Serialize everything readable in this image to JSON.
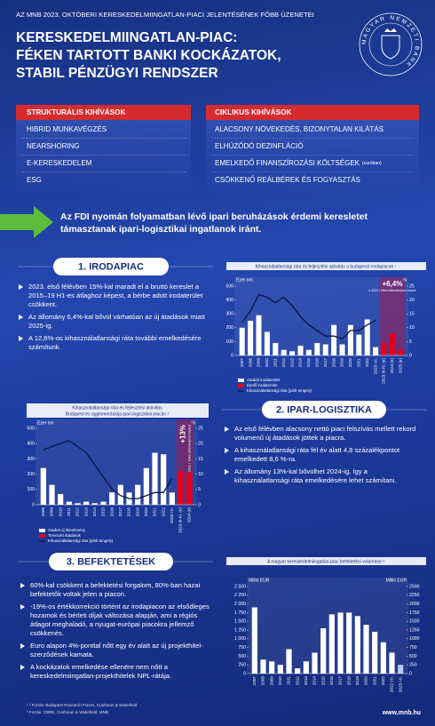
{
  "header": {
    "kicker": "AZ MNB 2023. OKTÓBERI KERESKEDELMIINGATLAN-PIACI JELENTÉSÉNEK FŐBB ÜZENETEI",
    "title": [
      "KERESKEDELMIINGATLAN-PIAC:",
      "FÉKEN TARTOTT BANKI KOCKÁZATOK,",
      "STABIL PÉNZÜGYI RENDSZER"
    ],
    "logo": "MAGYAR NEMZETI BANK"
  },
  "structural": {
    "title": "STRUKTURÁLIS KIHÍVÁSOK",
    "items": [
      "HIBRID MUNKAVÉGZÉS",
      "NEARSHORING",
      "E-KERESKEDELEM",
      "ESG"
    ]
  },
  "cyclical": {
    "title": "CIKLIKUS KIHÍVÁSOK",
    "items": [
      "ALACSONY NÖVEKEDÉS, BIZONYTALAN KILÁTÁS",
      "ELHÚZÓDÓ DEZINFLÁCIÓ",
      {
        "text": "EMELKEDŐ FINANSZÍROZÁSI KÖLTSÉGEK",
        "note": "(euróban)"
      },
      "CSÖKKENŐ REÁLBÉREK ÉS FOGYASZTÁS"
    ]
  },
  "highlight": "Az FDI nyomán folyamatban lévő ipari beruházások érdemi keresletet támasztanak ipari-logisztikai ingatlanok iránt.",
  "sections": [
    {
      "title": "1. IRODAPIAC",
      "bullets": [
        "2023. első félévben 15%-kal maradt el a bruttó kereslet a 2015–19 H1-es átlaghoz képest, a bérbe adott irodaterület csökkent.",
        "Az állomány 6,4%-kal bővül várhatóan az új átadások miatt 2025-ig.",
        "A 12,6%-os kihasználatlansági ráta további emelkedésére számítunk."
      ]
    },
    {
      "title": "2. IPAR-LOGISZTIKA",
      "bullets": [
        "Az első félévben alacsony nettó piaci felszívás mellett rekord volumenű új átadások jöttek a piacra.",
        "A kihasználatlansági ráta fél év alatt 4,8 százalékpontot emelkedett 8,6 %-ra.",
        "Az állomány 13%-kal bővülhet 2024-ig, így a kihasználatlansági ráta emelkedésére lehet számítani."
      ]
    },
    {
      "title": "3. BEFEKTETÉSEK",
      "bullets": [
        "60%-kal csökkent a befektetési forgalom, 80%-ban hazai befektetők voltak jelen a piacon.",
        "-19%-os értékkorrekció történt az irodapiacon az elsődleges hozamok és bérleti díjak változása alapján, ami a régiós átlagot meghaladó, a nyugat-európai piacokra jellemző csökkenés.",
        "Euro alapon 4%-ponttal nőtt egy év alatt az új projekthitel-szerződések kamata.",
        "A kockázatok emelkedése ellenére nem nőtt a kereskedelmiingatlan-projekthitelek NPL-rátája."
      ]
    }
  ],
  "chart_data": [
    {
      "type": "bar-line",
      "title": "Kihasználatlansági ráta és feljesztési aktivitás a budapesti irodapiacon ¹",
      "y_unit": "Ezer nm",
      "y2_unit": "%",
      "annotation": "+6,4%",
      "annotation_note": "a 2023 I. félévi állományhoz képest",
      "categories": [
        "2007",
        "2008",
        "2009",
        "2010",
        "2011",
        "2012",
        "2013",
        "2014",
        "2015",
        "2016",
        "2017",
        "2018",
        "2019",
        "2020",
        "2021",
        "2022",
        "2023 I-II.",
        "2023 III-IV. (e)",
        "2024 (e)",
        "2025 (e)"
      ],
      "series": [
        {
          "name": "Átadott irodaterület",
          "color": "#ffffff",
          "values": [
            200,
            250,
            290,
            170,
            90,
            40,
            30,
            70,
            40,
            90,
            80,
            220,
            80,
            220,
            150,
            260,
            60,
            null,
            null,
            null
          ]
        },
        {
          "name": "Épülő irodaterület",
          "color": "#e3001b",
          "values": [
            null,
            null,
            null,
            null,
            null,
            null,
            null,
            null,
            null,
            null,
            null,
            null,
            null,
            null,
            null,
            null,
            null,
            90,
            160,
            40
          ]
        },
        {
          "name": "Kihasználatlansági ráta (jobb tengely)",
          "color": "#0b1440",
          "axis": "y2",
          "values": [
            12,
            16,
            22,
            21,
            19,
            21,
            18,
            14,
            11,
            9,
            7,
            7,
            6,
            9,
            9,
            11,
            12.6,
            null,
            null,
            null
          ]
        }
      ],
      "ylim": [
        0,
        500
      ],
      "yticks": [
        0,
        100,
        200,
        300,
        400,
        500
      ],
      "y2lim": [
        0,
        25
      ],
      "y2ticks": [
        0,
        5,
        10,
        15,
        20,
        25
      ]
    },
    {
      "type": "bar-line",
      "title": "Kihasználatlansági ráta és fejlesztési aktivitás",
      "subtitle": "Budapest és agglomerációja ipari-logisztikai piacán ²",
      "y_unit": "Ezer nm",
      "y2_unit": "%",
      "annotation": "+13%",
      "annotation_note": "a 2023 I. félévi állományhoz képest",
      "categories": [
        "2008",
        "2009",
        "2010",
        "2011",
        "2012",
        "2013",
        "2014",
        "2015",
        "2016",
        "2017",
        "2018",
        "2019",
        "2020",
        "2021",
        "2022",
        "2023 I-II.",
        "2023 III-IV. (e)",
        "2024 (e)"
      ],
      "series": [
        {
          "name": "Átadott új létesítmény",
          "color": "#ffffff",
          "values": [
            240,
            130,
            70,
            20,
            10,
            20,
            10,
            20,
            80,
            130,
            80,
            130,
            240,
            340,
            330,
            80,
            null,
            null
          ]
        },
        {
          "name": "Tervezett átadások",
          "color": "#e3001b",
          "values": [
            null,
            null,
            null,
            null,
            null,
            null,
            null,
            null,
            null,
            null,
            null,
            null,
            null,
            null,
            null,
            null,
            220,
            210
          ]
        },
        {
          "name": "Kihasználatlansági ráta (jobb tengely)",
          "color": "#0b1440",
          "axis": "y2",
          "values": [
            18,
            19,
            20,
            21,
            19,
            17,
            13,
            9,
            5,
            3,
            2,
            2,
            3,
            4,
            4,
            8.6,
            null,
            null
          ]
        }
      ],
      "ylim": [
        0,
        500
      ],
      "yticks": [
        0,
        100,
        200,
        300,
        400,
        500
      ],
      "y2lim": [
        0,
        25
      ],
      "y2ticks": [
        0,
        5,
        10,
        15,
        20,
        25
      ]
    },
    {
      "type": "bar",
      "title": "A magyar kereskedelmiingatlan-piac befektetési volumene ³",
      "y_unit": "Millió EUR",
      "y2_unit": "Millió EUR",
      "categories": [
        "2007",
        "2008",
        "2009",
        "2010",
        "2011",
        "2012",
        "2013",
        "2014",
        "2015",
        "2016",
        "2017",
        "2018",
        "2019",
        "2020",
        "2021",
        "2022",
        "2022 I-II.",
        "2023 I-II."
      ],
      "series": [
        {
          "color": "#ffffff",
          "colors": [
            "#ffffff",
            "#ffffff",
            "#ffffff",
            "#ffffff",
            "#ffffff",
            "#ffffff",
            "#ffffff",
            "#ffffff",
            "#ffffff",
            "#ffffff",
            "#ffffff",
            "#ffffff",
            "#ffffff",
            "#ffffff",
            "#ffffff",
            "#ffffff",
            "#ffffff",
            "#b9c9f2"
          ],
          "values": [
            1900,
            400,
            350,
            250,
            700,
            150,
            350,
            600,
            1300,
            1700,
            1750,
            1750,
            1650,
            1400,
            1200,
            900,
            600,
            250
          ]
        }
      ],
      "ylim": [
        0,
        2500
      ],
      "yticks": [
        0,
        250,
        500,
        750,
        {
          "value": 1000,
          "label": "1 000"
        },
        {
          "value": 1250,
          "label": "1 250"
        },
        {
          "value": 1500,
          "label": "1 500"
        },
        {
          "value": 1750,
          "label": "1 750"
        },
        {
          "value": 2000,
          "label": "2 000"
        },
        {
          "value": 2250,
          "label": "2 250"
        },
        {
          "value": 2500,
          "label": "2 500"
        }
      ],
      "y2lim": [
        0,
        2500
      ],
      "y2ticks": [
        0,
        250,
        500,
        750,
        1000,
        1250,
        1500,
        1750,
        2000,
        2250,
        2500
      ]
    }
  ],
  "footer": {
    "sources": [
      "¹ ² Forrás: Budapest Research Forum, Cushman & Wakefield",
      "³ Forrás: CBRE, Cushman & Wakefield, MNB"
    ],
    "url": "www.mnb.hu"
  }
}
